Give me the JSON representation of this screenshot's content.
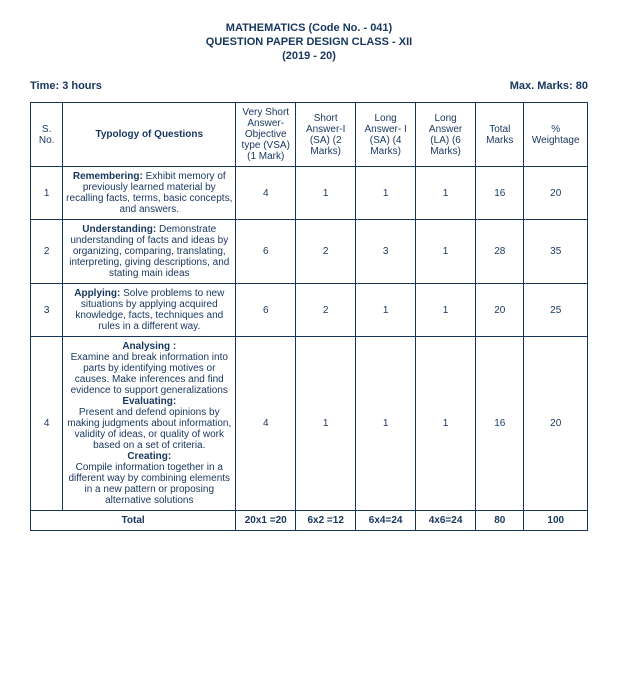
{
  "header": {
    "line1": "MATHEMATICS (Code No. - 041)",
    "line2": "QUESTION PAPER DESIGN CLASS - XII",
    "line3": "(2019 - 20)"
  },
  "meta": {
    "time": "Time: 3 hours",
    "max_marks": "Max. Marks: 80"
  },
  "columns": {
    "sno": "S. No.",
    "typology": "Typology of Questions",
    "vsa": "Very Short Answer- Objective type (VSA) (1 Mark)",
    "sa": "Short Answer-I (SA) (2 Marks)",
    "la1": "Long Answer- I (SA) (4 Marks)",
    "la2": "Long Answer (LA) (6 Marks)",
    "total": "Total Marks",
    "weight": "% Weightage"
  },
  "rows": [
    {
      "sno": "1",
      "title": "Remembering:",
      "desc": " Exhibit memory of previously learned material by recalling facts, terms, basic concepts, and answers.",
      "vsa": "4",
      "sa": "1",
      "la1": "1",
      "la2": "1",
      "total": "16",
      "weight": "20"
    },
    {
      "sno": "2",
      "title": "Understanding:",
      "desc": " Demonstrate understanding of facts and ideas by organizing, comparing, translating, interpreting, giving descriptions, and stating main ideas",
      "vsa": "6",
      "sa": "2",
      "la1": "3",
      "la2": "1",
      "total": "28",
      "weight": "35"
    },
    {
      "sno": "3",
      "title": "Applying:",
      "desc": " Solve problems to new situations by applying acquired knowledge, facts, techniques and rules in a different way.",
      "vsa": "6",
      "sa": "2",
      "la1": "1",
      "la2": "1",
      "total": "20",
      "weight": "25"
    }
  ],
  "row4": {
    "sno": "4",
    "t1": "Analysing :",
    "d1": "Examine and break information into parts by identifying motives or causes. Make inferences and find evidence to support generalizations",
    "t2": "Evaluating:",
    "d2": "Present and defend opinions by making judgments about information, validity of ideas, or quality of work based on a set of criteria.",
    "t3": "Creating:",
    "d3": "Compile information together in a different way by combining elements in a new pattern or proposing alternative solutions",
    "vsa": "4",
    "sa": "1",
    "la1": "1",
    "la2": "1",
    "total": "16",
    "weight": "20"
  },
  "footer": {
    "label": "Total",
    "vsa": "20x1 =20",
    "sa": "6x2 =12",
    "la1": "6x4=24",
    "la2": "4x6=24",
    "total": "80",
    "weight": "100"
  }
}
